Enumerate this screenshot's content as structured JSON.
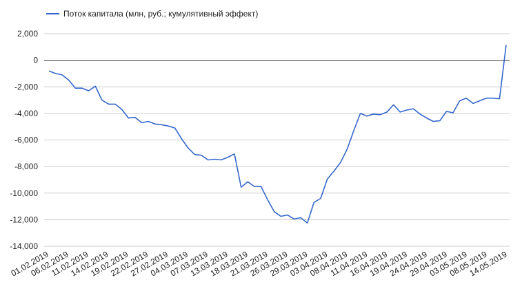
{
  "chart_data": {
    "type": "line",
    "title": "",
    "xlabel": "",
    "ylabel": "",
    "ylim": [
      -14000,
      2000
    ],
    "yticks": [
      2000,
      0,
      -2000,
      -4000,
      -6000,
      -8000,
      -10000,
      -12000,
      -14000
    ],
    "ytick_labels": [
      "2,000",
      "0",
      "-2,000",
      "-4,000",
      "-6,000",
      "-8,000",
      "-10,000",
      "-12,000",
      "-14,000"
    ],
    "xtick_labels": [
      "01.02.2019",
      "06.02.2019",
      "11.02.2019",
      "14.02.2019",
      "19.02.2019",
      "22.02.2019",
      "27.02.2019",
      "04.03.2019",
      "07.03.2019",
      "13.03.2019",
      "18.03.2019",
      "21.03.2019",
      "26.03.2019",
      "29.03.2019",
      "03.04.2019",
      "08.04.2019",
      "11.04.2019",
      "16.04.2019",
      "19.04.2019",
      "24.04.2019",
      "29.04.2019",
      "03.05.2019",
      "08.05.2019",
      "14.05.2019"
    ],
    "grid": true,
    "legend_position": "top-left",
    "series": [
      {
        "name": "Поток капитала (млн, руб.; кумулятивный эффект)",
        "color": "#3366cc",
        "values": [
          -800,
          -1000,
          -1100,
          -1500,
          -2100,
          -2100,
          -2300,
          -1950,
          -3000,
          -3300,
          -3300,
          -3700,
          -4350,
          -4300,
          -4700,
          -4600,
          -4800,
          -4850,
          -4950,
          -5100,
          -5900,
          -6600,
          -7100,
          -7150,
          -7500,
          -7450,
          -7500,
          -7300,
          -7050,
          -9550,
          -9150,
          -9500,
          -9500,
          -10500,
          -11400,
          -11750,
          -11650,
          -11950,
          -11850,
          -12250,
          -10700,
          -10400,
          -8950,
          -8350,
          -7700,
          -6700,
          -5300,
          -4000,
          -4200,
          -4050,
          -4100,
          -3900,
          -3350,
          -3900,
          -3750,
          -3650,
          -4050,
          -4350,
          -4600,
          -4550,
          -3850,
          -3950,
          -3050,
          -2850,
          -3250,
          -3050,
          -2850,
          -2850,
          -2900,
          1150
        ]
      }
    ]
  }
}
